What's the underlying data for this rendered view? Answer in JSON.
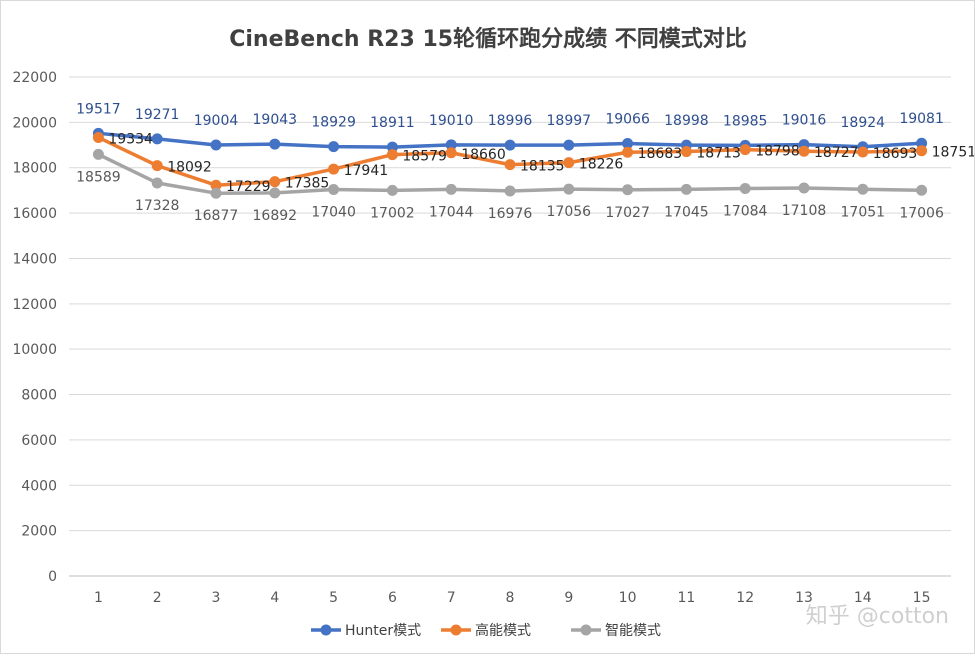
{
  "chart_data": {
    "type": "line",
    "title": "CineBench R23 15轮循环跑分成绩 不同模式对比",
    "xlabel": "",
    "ylabel": "",
    "x": [
      1,
      2,
      3,
      4,
      5,
      6,
      7,
      8,
      9,
      10,
      11,
      12,
      13,
      14,
      15
    ],
    "ylim": [
      0,
      22000
    ],
    "yticks": [
      0,
      2000,
      4000,
      6000,
      8000,
      10000,
      12000,
      14000,
      16000,
      18000,
      20000,
      22000
    ],
    "grid": true,
    "legend_position": "bottom",
    "series": [
      {
        "name": "Hunter模式",
        "color": "#4472c4",
        "label_color": "#2f4f8f",
        "values": [
          19517,
          19271,
          19004,
          19043,
          18929,
          18911,
          19010,
          18996,
          18997,
          19066,
          18998,
          18985,
          19016,
          18924,
          19081
        ]
      },
      {
        "name": "高能模式",
        "color": "#ed7d31",
        "label_color": "#262626",
        "values": [
          19334,
          18092,
          17229,
          17385,
          17941,
          18579,
          18660,
          18135,
          18226,
          18683,
          18713,
          18798,
          18727,
          18693,
          18751
        ]
      },
      {
        "name": "智能模式",
        "color": "#a5a5a5",
        "label_color": "#595959",
        "values": [
          18589,
          17328,
          16877,
          16892,
          17040,
          17002,
          17044,
          16976,
          17056,
          17027,
          17045,
          17084,
          17108,
          17051,
          17006
        ]
      }
    ]
  },
  "watermark": "知乎 @cotton"
}
